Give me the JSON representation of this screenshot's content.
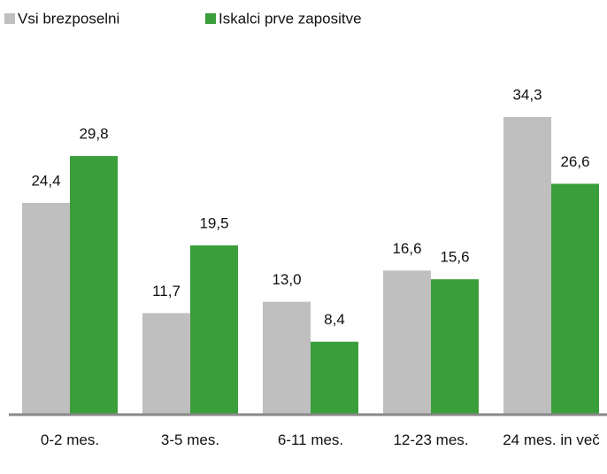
{
  "chart_data": {
    "type": "bar",
    "categories": [
      "0-2 mes.",
      "3-5 mes.",
      "6-11 mes.",
      "12-23 mes.",
      "24 mes. in več"
    ],
    "series": [
      {
        "name": "Vsi brezposelni",
        "color": "#bfbfbf",
        "values": [
          24.4,
          11.7,
          13.0,
          16.6,
          34.3
        ],
        "value_labels": [
          "24,4",
          "11,7",
          "13,0",
          "16,6",
          "34,3"
        ]
      },
      {
        "name": "Iskalci prve zapositve",
        "color": "#3a9e3a",
        "values": [
          29.8,
          19.5,
          8.4,
          15.6,
          26.6
        ],
        "value_labels": [
          "29,8",
          "19,5",
          "8,4",
          "15,6",
          "26,6"
        ]
      }
    ],
    "legend": "top-left"
  }
}
